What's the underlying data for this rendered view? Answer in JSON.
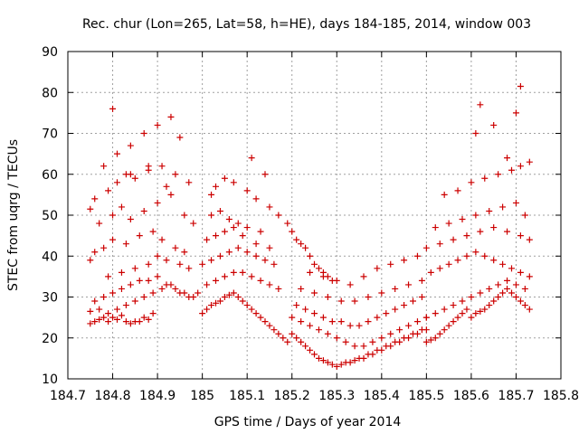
{
  "chart_data": {
    "type": "scatter",
    "title": "Rec. chur (Lon=265, Lat=58, h=HE), days 184-185, 2014, window 003",
    "xlabel": "GPS time / Days of year 2014",
    "ylabel": "STEC from uqrg / TECUs",
    "xlim": [
      184.7,
      185.8
    ],
    "ylim": [
      10,
      90
    ],
    "xticks": [
      184.7,
      184.8,
      184.9,
      185.0,
      185.1,
      185.2,
      185.3,
      185.4,
      185.5,
      185.6,
      185.7,
      185.8
    ],
    "xtick_labels": [
      "184.7",
      "184.8",
      "184.9",
      "185",
      "185.1",
      "185.2",
      "185.3",
      "185.4",
      "185.5",
      "185.6",
      "185.7",
      "185.8"
    ],
    "yticks": [
      10,
      20,
      30,
      40,
      50,
      60,
      70,
      80,
      90
    ],
    "ytick_labels": [
      "10",
      "20",
      "30",
      "40",
      "50",
      "60",
      "70",
      "80",
      "90"
    ],
    "grid": true,
    "marker": "plus",
    "color": "#cc0000",
    "series": [
      {
        "x": [
          184.75,
          184.76,
          184.77,
          184.78,
          184.79,
          184.8,
          184.81,
          184.82,
          184.83,
          184.84,
          184.85,
          184.86,
          184.87,
          184.88,
          184.89,
          184.75,
          184.77,
          184.79,
          184.81,
          184.83,
          184.85,
          184.87,
          184.89,
          184.91,
          184.93,
          184.95,
          184.97,
          184.99,
          184.76,
          184.78,
          184.8,
          184.82,
          184.84,
          184.86,
          184.88,
          184.9,
          184.92,
          184.94,
          184.96,
          184.98,
          184.79,
          184.82,
          184.85,
          184.88,
          184.9,
          184.92,
          184.95,
          184.97,
          184.75,
          184.76,
          184.78,
          184.8,
          184.83,
          184.86,
          184.89,
          184.91,
          184.94,
          184.96,
          184.77,
          184.8,
          184.82,
          184.84,
          184.87,
          184.9,
          184.93,
          184.96,
          184.98,
          184.76,
          184.79,
          184.81,
          184.83,
          184.85,
          184.88,
          184.91,
          184.94,
          184.97,
          184.75,
          184.78,
          184.81,
          184.84,
          184.87,
          184.9,
          184.93,
          184.95,
          184.8,
          184.84,
          184.88,
          184.92
        ],
        "y": [
          23.5,
          24,
          24.5,
          25,
          24,
          25,
          24.5,
          25.5,
          24,
          23.5,
          24,
          24,
          25,
          24.5,
          26,
          26.5,
          27,
          26,
          27,
          28,
          29,
          30,
          31,
          32,
          33,
          31,
          30,
          31,
          29,
          30,
          31,
          32,
          33,
          34,
          34,
          35,
          33,
          32,
          31,
          30,
          35,
          36,
          37,
          38,
          40,
          39,
          38,
          37,
          39,
          41,
          42,
          44,
          43,
          45,
          46,
          44,
          42,
          41,
          48,
          50,
          52,
          49,
          51,
          53,
          55,
          50,
          48,
          54,
          56,
          58,
          60,
          59,
          61,
          62,
          60,
          58,
          51.5,
          62,
          65,
          67,
          70,
          72,
          74,
          69,
          76,
          60,
          62,
          57
        ]
      },
      {
        "x": [
          185.0,
          185.01,
          185.02,
          185.03,
          185.04,
          185.05,
          185.06,
          185.07,
          185.08,
          185.09,
          185.1,
          185.11,
          185.12,
          185.13,
          185.14,
          185.15,
          185.16,
          185.17,
          185.18,
          185.19,
          185.01,
          185.03,
          185.05,
          185.07,
          185.09,
          185.11,
          185.13,
          185.15,
          185.17,
          185.0,
          185.02,
          185.04,
          185.06,
          185.08,
          185.1,
          185.12,
          185.14,
          185.16,
          185.01,
          185.03,
          185.05,
          185.07,
          185.09,
          185.12,
          185.15,
          185.02,
          185.04,
          185.06,
          185.08,
          185.1,
          185.13,
          185.02,
          185.03,
          185.05,
          185.07,
          185.1,
          185.12,
          185.15,
          185.11,
          185.14,
          185.17,
          185.19,
          185.2,
          185.21,
          185.22,
          185.23,
          185.24,
          185.25,
          185.26,
          185.27,
          185.28,
          185.29
        ],
        "y": [
          26,
          27,
          28,
          28.5,
          29,
          30,
          30.5,
          31,
          30,
          29,
          28,
          27,
          26,
          25,
          24,
          23,
          22,
          21,
          20,
          19,
          33,
          34,
          35,
          36,
          36,
          35,
          34,
          33,
          32,
          38,
          39,
          40,
          41,
          42,
          41,
          40,
          39,
          38,
          44,
          45,
          46,
          47,
          45,
          43,
          42,
          50,
          51,
          49,
          48,
          47,
          46,
          55,
          57,
          59,
          58,
          56,
          54,
          52,
          64,
          60,
          50,
          48,
          46,
          44,
          43,
          42,
          40,
          38,
          37,
          36,
          35,
          34
        ]
      },
      {
        "x": [
          185.2,
          185.21,
          185.22,
          185.23,
          185.24,
          185.25,
          185.26,
          185.27,
          185.28,
          185.29,
          185.3,
          185.31,
          185.32,
          185.33,
          185.34,
          185.35,
          185.36,
          185.37,
          185.38,
          185.39,
          185.4,
          185.41,
          185.42,
          185.43,
          185.44,
          185.45,
          185.46,
          185.47,
          185.48,
          185.49,
          185.5,
          185.2,
          185.22,
          185.24,
          185.26,
          185.28,
          185.3,
          185.32,
          185.34,
          185.36,
          185.38,
          185.4,
          185.42,
          185.44,
          185.46,
          185.48,
          185.5,
          185.21,
          185.23,
          185.25,
          185.27,
          185.29,
          185.31,
          185.33,
          185.35,
          185.37,
          185.39,
          185.41,
          185.43,
          185.45,
          185.47,
          185.49,
          185.22,
          185.25,
          185.28,
          185.31,
          185.34,
          185.37,
          185.4,
          185.43,
          185.46,
          185.49,
          185.24,
          185.27,
          185.3,
          185.33,
          185.36,
          185.39,
          185.42,
          185.45,
          185.48
        ],
        "y": [
          21,
          20,
          19,
          18,
          17,
          16,
          15,
          14.5,
          14,
          13.5,
          13,
          13.5,
          14,
          14,
          14.5,
          15,
          15,
          16,
          16,
          17,
          17,
          18,
          18,
          19,
          19,
          20,
          20,
          21,
          21,
          22,
          22,
          25,
          24,
          23,
          22,
          21,
          20,
          19,
          18,
          18,
          19,
          20,
          21,
          22,
          23,
          24,
          25,
          28,
          27,
          26,
          25,
          24,
          24,
          23,
          23,
          24,
          25,
          26,
          27,
          28,
          29,
          30,
          32,
          31,
          30,
          29,
          29,
          30,
          31,
          32,
          33,
          34,
          36,
          35,
          34,
          33,
          35,
          37,
          38,
          39,
          40
        ]
      },
      {
        "x": [
          185.5,
          185.51,
          185.52,
          185.53,
          185.54,
          185.55,
          185.56,
          185.57,
          185.58,
          185.59,
          185.6,
          185.61,
          185.62,
          185.63,
          185.64,
          185.65,
          185.66,
          185.67,
          185.68,
          185.69,
          185.7,
          185.71,
          185.72,
          185.73,
          185.5,
          185.52,
          185.54,
          185.56,
          185.58,
          185.6,
          185.62,
          185.64,
          185.66,
          185.68,
          185.7,
          185.72,
          185.51,
          185.53,
          185.55,
          185.57,
          185.59,
          185.61,
          185.63,
          185.65,
          185.67,
          185.69,
          185.71,
          185.73,
          185.5,
          185.53,
          185.56,
          185.59,
          185.62,
          185.65,
          185.68,
          185.71,
          185.73,
          185.52,
          185.55,
          185.58,
          185.61,
          185.64,
          185.67,
          185.7,
          185.72,
          185.54,
          185.57,
          185.6,
          185.63,
          185.66,
          185.69,
          185.71,
          185.73,
          185.61,
          185.62,
          185.65,
          185.68,
          185.7,
          185.71
        ],
        "y": [
          19,
          19.5,
          20,
          21,
          22,
          23,
          24,
          25,
          26,
          27,
          25,
          26,
          26.5,
          27,
          28,
          29,
          30,
          31,
          32,
          31,
          30,
          29,
          28,
          27,
          25,
          26,
          27,
          28,
          29,
          30,
          31,
          32,
          33,
          34,
          33,
          32,
          36,
          37,
          38,
          39,
          40,
          41,
          40,
          39,
          38,
          37,
          36,
          35,
          42,
          43,
          44,
          45,
          46,
          47,
          46,
          45,
          44,
          47,
          48,
          49,
          50,
          51,
          52,
          53,
          50,
          55,
          56,
          58,
          59,
          60,
          61,
          62,
          63,
          70,
          77,
          72,
          64,
          75,
          81.5
        ]
      }
    ]
  }
}
